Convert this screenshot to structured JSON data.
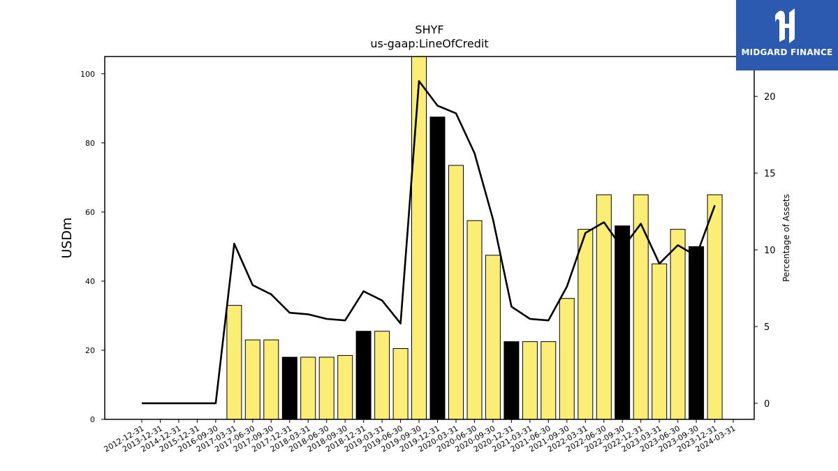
{
  "branding": {
    "name": "MIDGARD FINANCE",
    "logo_icon": "midgard-m-icon",
    "color": "#2b5ab0"
  },
  "chart_data": {
    "type": "bar",
    "title": "SHYF",
    "subtitle": "us-gaap:LineOfCredit",
    "ylabel": "USDm",
    "y2label": "Percentage of Assets",
    "ylim": [
      0,
      105
    ],
    "y2lim": [
      -1.05,
      22.6
    ],
    "yticks": [
      0,
      20,
      40,
      60,
      80,
      100
    ],
    "y2ticks": [
      0,
      5,
      10,
      15,
      20
    ],
    "categories": [
      "2012-12-31",
      "2013-12-31",
      "2014-12-31",
      "2015-12-31",
      "2016-09-30",
      "2017-03-31",
      "2017-06-30",
      "2017-09-30",
      "2017-12-31",
      "2018-03-31",
      "2018-06-30",
      "2018-09-30",
      "2018-12-31",
      "2019-03-31",
      "2019-06-30",
      "2019-09-30",
      "2019-12-31",
      "2020-03-31",
      "2020-06-30",
      "2020-09-30",
      "2020-12-31",
      "2021-03-31",
      "2021-06-30",
      "2021-09-30",
      "2022-03-31",
      "2022-06-30",
      "2022-09-30",
      "2022-12-31",
      "2023-03-31",
      "2023-06-30",
      "2023-09-30",
      "2023-12-31",
      "2024-03-31"
    ],
    "series": [
      {
        "kind": "bar",
        "values": [
          0,
          0,
          0,
          0,
          0,
          33,
          23,
          23,
          18,
          18,
          18,
          18.5,
          25.5,
          25.5,
          20.5,
          106,
          87.5,
          73.5,
          57.5,
          47.5,
          22.5,
          22.5,
          22.5,
          35,
          55,
          65,
          56,
          65,
          45,
          55,
          50,
          65,
          null
        ]
      },
      {
        "kind": "line",
        "axis": "right",
        "values": [
          0,
          0,
          0,
          0,
          0,
          10.4,
          7.7,
          7.1,
          5.9,
          5.8,
          5.5,
          5.4,
          7.3,
          6.7,
          5.2,
          21,
          19.4,
          18.9,
          16.3,
          12,
          6.3,
          5.5,
          5.4,
          7.6,
          11.1,
          11.8,
          10.1,
          11.7,
          9.1,
          10.3,
          9.6,
          12.9,
          null
        ]
      }
    ],
    "bar_highlight": [
      false,
      false,
      false,
      false,
      false,
      false,
      false,
      false,
      true,
      false,
      false,
      false,
      true,
      false,
      false,
      false,
      true,
      false,
      false,
      false,
      true,
      false,
      false,
      false,
      false,
      false,
      true,
      false,
      false,
      false,
      true,
      false,
      false
    ],
    "colors": {
      "bar": "#fced74",
      "bar_highlight": "#000000",
      "line": "#000000"
    },
    "grid": false,
    "legend": "none"
  }
}
